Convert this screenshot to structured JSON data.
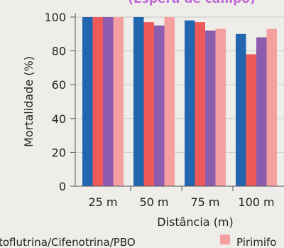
{
  "chart_data": {
    "type": "bar",
    "title": "(Espera de campo)",
    "title_color": "#c06ad8",
    "xlabel": "Distância (m)",
    "ylabel": "Mortalidade (%)",
    "ylim": [
      0,
      100
    ],
    "yticks": [
      "0",
      "20",
      "40",
      "60",
      "80",
      "100"
    ],
    "categories": [
      "25 m",
      "50 m",
      "75 m",
      "100 m"
    ],
    "series": [
      {
        "name": "",
        "color": "#2266b0",
        "values": [
          100,
          100,
          98,
          90
        ]
      },
      {
        "name": "Transfluthrina/Cifenotrina/PBO",
        "color": "#ee5a5a",
        "values": [
          100,
          97,
          97,
          78
        ]
      },
      {
        "name": "",
        "color": "#8e5cae",
        "values": [
          100,
          95,
          92,
          88
        ]
      },
      {
        "name": "Pirimifos",
        "color": "#f5a0a0",
        "values": [
          100,
          100,
          93,
          93
        ]
      }
    ],
    "legend": {
      "position": "bottom",
      "labels": [
        "toflutrina/Cifenotrina/PBO",
        "Pirimifo"
      ]
    },
    "grid": true
  }
}
